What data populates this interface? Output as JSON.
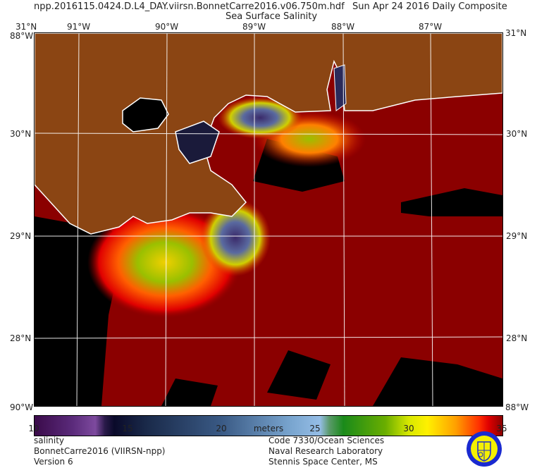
{
  "header": {
    "filename": "npp.2016115.0424.D.L4_DAY.viirsn.BonnetCarre2016.v06.750m.hdf",
    "date": "Sun Apr 24 2016 Daily Composite",
    "title": "Sea Surface Salinity"
  },
  "axes": {
    "lon_labels": [
      "91°W",
      "90°W",
      "89°W",
      "88°W",
      "87°W"
    ],
    "lat_labels": [
      "30°N",
      "29°N",
      "28°N"
    ],
    "top_left": "31°N",
    "top_right": "31°N",
    "corner_left": "88°W",
    "corner_right": "88°W",
    "bottom_left": "90°W",
    "bottom_right": "88°W"
  },
  "colorbar": {
    "ticks": [
      "10",
      "15",
      "20",
      "25",
      "30",
      "35"
    ],
    "units": "meters",
    "range": [
      10,
      35
    ]
  },
  "colors": {
    "land": "#8b4513",
    "ocean_high": "#8b0000",
    "no_data": "#000000",
    "coastline": "#ffffff"
  },
  "footer": {
    "left": [
      "salinity",
      "BonnetCarre2016 (VIIRSN-npp)",
      "Version 6"
    ],
    "right": [
      "Code 7330/Ocean Sciences",
      "Naval Research Laboratory",
      "Stennis Space Center, MS"
    ]
  },
  "logo": {
    "name": "Naval Research Laboratory seal"
  }
}
